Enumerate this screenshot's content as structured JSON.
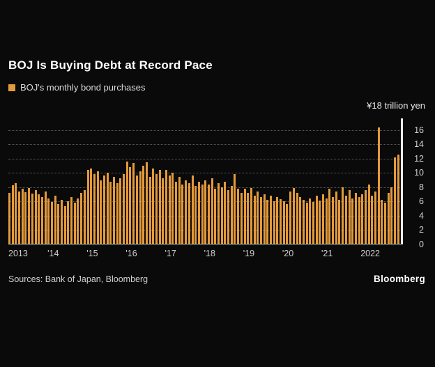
{
  "header": {
    "title": "BOJ Is Buying Debt at Record Pace",
    "legend_label": "BOJ's monthly bond purchases"
  },
  "axis": {
    "top_label": "¥18 trillion yen",
    "y_ticks": [
      16,
      14,
      12,
      10,
      8,
      6,
      4,
      2,
      0
    ]
  },
  "footer": {
    "sources": "Sources: Bank of Japan, Bloomberg",
    "brand": "Bloomberg"
  },
  "colors": {
    "bar": "#E39A3B",
    "highlight": "#ECECEC",
    "background": "#0a0a0a",
    "grid": "#5a5a5a"
  },
  "chart_data": {
    "type": "bar",
    "title": "BOJ Is Buying Debt at Record Pace",
    "series_name": "BOJ's monthly bond purchases",
    "unit": "trillion yen",
    "x_range": [
      "2013-01",
      "2023-01"
    ],
    "ylim": [
      0,
      18
    ],
    "grid": "dotted-horizontal",
    "legend_position": "top-left",
    "highlight_index": 120,
    "xticks": [
      {
        "label": "2013",
        "month_index": 0
      },
      {
        "label": "'14",
        "month_index": 12
      },
      {
        "label": "'15",
        "month_index": 24
      },
      {
        "label": "'16",
        "month_index": 36
      },
      {
        "label": "'17",
        "month_index": 48
      },
      {
        "label": "'18",
        "month_index": 60
      },
      {
        "label": "'19",
        "month_index": 72
      },
      {
        "label": "'20",
        "month_index": 84
      },
      {
        "label": "'21",
        "month_index": 96
      },
      {
        "label": "2022",
        "month_index": 108
      }
    ],
    "values": [
      7.2,
      8.3,
      8.6,
      7.4,
      7.8,
      7.3,
      7.9,
      7.1,
      7.6,
      7.0,
      6.6,
      7.4,
      6.4,
      5.9,
      6.8,
      5.6,
      6.2,
      5.4,
      6.0,
      6.6,
      5.8,
      6.4,
      7.2,
      7.6,
      10.4,
      10.6,
      9.8,
      10.2,
      9.0,
      9.6,
      10.0,
      8.8,
      9.4,
      8.6,
      9.2,
      9.8,
      11.6,
      10.8,
      11.4,
      9.6,
      10.2,
      11.0,
      11.5,
      9.4,
      10.6,
      9.8,
      10.4,
      9.2,
      10.4,
      9.6,
      10.0,
      8.8,
      9.4,
      8.4,
      9.0,
      8.6,
      9.6,
      8.2,
      8.8,
      8.4,
      9.0,
      8.4,
      9.2,
      7.8,
      8.6,
      8.0,
      8.8,
      7.6,
      8.2,
      9.8,
      7.8,
      7.2,
      7.8,
      7.2,
      7.9,
      6.8,
      7.4,
      6.6,
      7.0,
      6.2,
      6.8,
      6.0,
      6.6,
      6.3,
      6.0,
      5.6,
      7.4,
      7.9,
      7.2,
      6.6,
      6.2,
      5.8,
      6.4,
      5.9,
      6.8,
      6.1,
      7.0,
      6.4,
      7.8,
      6.6,
      7.4,
      6.2,
      8.0,
      6.8,
      7.6,
      6.4,
      7.2,
      6.6,
      7.0,
      7.6,
      8.4,
      6.8,
      7.4,
      16.3,
      6.2,
      5.8,
      7.2,
      8.0,
      12.2,
      12.6,
      17.6
    ]
  }
}
